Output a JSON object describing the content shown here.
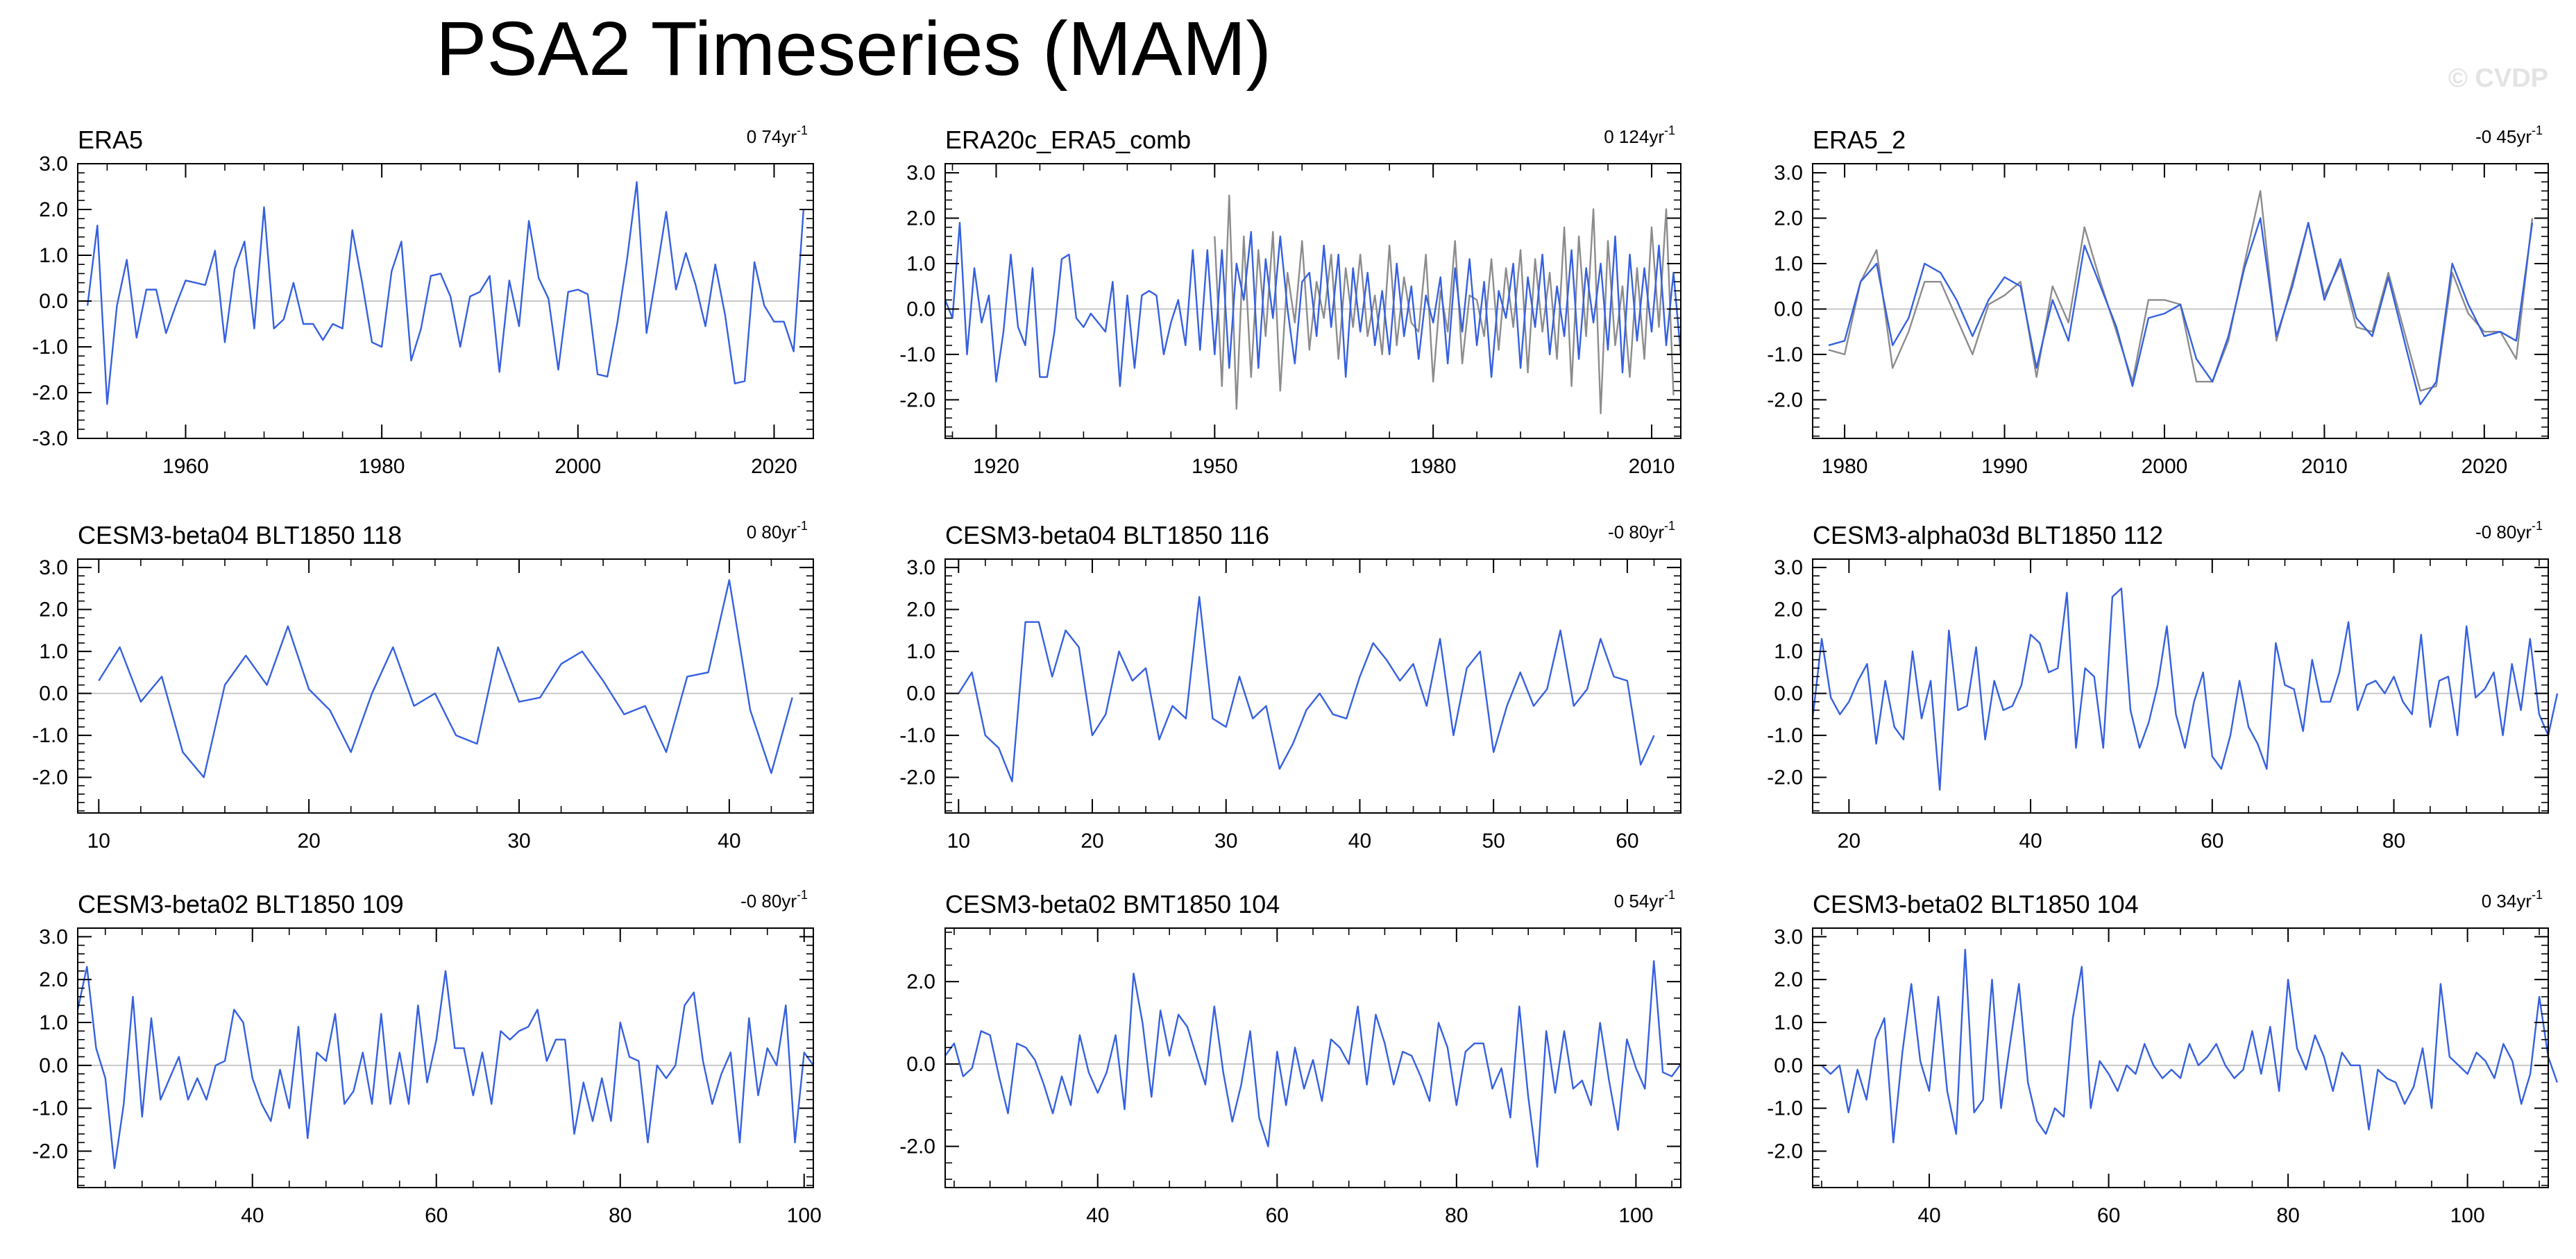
{
  "figure": {
    "title": "PSA2 Timeseries (MAM)",
    "watermark": "© CVDP",
    "colors": {
      "primary": "#3560e0",
      "secondary": "#8c8c8c",
      "zero_line": "#c8c8c8",
      "axes": "#000000"
    }
  },
  "chart_data": [
    {
      "type": "line",
      "title": "ERA5",
      "trend": "0 74yr",
      "trend_sup": "-1",
      "xlim": [
        1949,
        2024
      ],
      "ylim": [
        -3,
        3
      ],
      "xticks": [
        1960,
        1980,
        2000,
        2020
      ],
      "yticks": [
        -3,
        -2,
        -1,
        0,
        1,
        2,
        3
      ],
      "ytick_labels": [
        "-3.0",
        "-2.0",
        "-1.0",
        "0.0",
        "1.0",
        "2.0",
        "3.0"
      ],
      "series": [
        {
          "name": "ERA5",
          "x_start": 1950,
          "values": [
            -0.1,
            1.65,
            -2.25,
            -0.1,
            0.9,
            -0.8,
            0.25,
            0.25,
            -0.7,
            -0.1,
            0.45,
            0.4,
            0.35,
            1.1,
            -0.9,
            0.7,
            1.3,
            -0.6,
            2.05,
            -0.6,
            -0.4,
            0.4,
            -0.5,
            -0.5,
            -0.85,
            -0.5,
            -0.6,
            1.55,
            0.4,
            -0.9,
            -1.0,
            0.65,
            1.3,
            -1.3,
            -0.6,
            0.55,
            0.6,
            0.1,
            -1.0,
            0.1,
            0.2,
            0.55,
            -1.55,
            0.45,
            -0.55,
            1.75,
            0.5,
            0.05,
            -1.5,
            0.2,
            0.25,
            0.15,
            -1.6,
            -1.65,
            -0.5,
            0.9,
            2.6,
            -0.7,
            0.6,
            1.95,
            0.25,
            1.05,
            0.35,
            -0.55,
            0.8,
            -0.3,
            -1.8,
            -1.75,
            0.85,
            -0.1,
            -0.45,
            -0.45,
            -1.1,
            2.0
          ]
        }
      ]
    },
    {
      "type": "line",
      "title": "ERA20c_ERA5_comb",
      "trend": "0 124yr",
      "trend_sup": "-1",
      "xlim": [
        1913,
        2014
      ],
      "ylim": [
        -2.85,
        3.2
      ],
      "xticks": [
        1920,
        1950,
        1980,
        2010
      ],
      "yticks": [
        -2,
        -1,
        0,
        1,
        2,
        3
      ],
      "ytick_labels": [
        "-2.0",
        "-1.0",
        "0.0",
        "1.0",
        "2.0",
        "3.0"
      ],
      "series": [
        {
          "name": "ERA20c",
          "x_start": 1913,
          "values": [
            0.2,
            -0.2,
            1.9,
            -1.0,
            0.9,
            -0.3,
            0.3,
            -1.6,
            -0.5,
            1.2,
            -0.4,
            -0.8,
            0.9,
            -1.5,
            -1.5,
            -0.5,
            1.1,
            1.2,
            -0.2,
            -0.4,
            -0.1,
            -0.3,
            -0.5,
            0.6,
            -1.7,
            0.3,
            -1.3,
            0.3,
            0.4,
            0.3,
            -1.0,
            -0.3,
            0.2,
            -0.8,
            1.3,
            -0.9,
            1.3,
            -1.0,
            1.3,
            -1.3,
            1.0,
            0.2,
            1.7,
            -1.3,
            1.1,
            -0.2,
            1.6,
            0.0,
            -1.2,
            0.6,
            0.8,
            -0.6,
            1.4,
            -0.4,
            1.2,
            -1.5,
            0.9,
            -0.5,
            0.8,
            -0.8,
            0.4,
            -1.0,
            1.0,
            -0.6,
            0.5,
            -1.1,
            0.3,
            -0.3,
            0.7,
            -1.2,
            0.9,
            -0.5,
            1.1,
            -0.8,
            0.6,
            -1.5,
            0.4,
            -0.2,
            1.0,
            -1.3,
            0.7,
            -0.4,
            1.2,
            -1.0,
            0.5,
            -0.6,
            1.3,
            -1.1,
            0.9,
            -0.3,
            1.0,
            -0.9,
            1.6,
            -1.4,
            1.2,
            -0.7,
            0.9,
            -0.5,
            1.4,
            -0.8,
            0.8,
            -1.0
          ]
        },
        {
          "name": "ERA5",
          "x_start": 1950,
          "values": [
            1.6,
            -1.7,
            2.5,
            -2.2,
            1.6,
            -1.5,
            1.3,
            -0.6,
            1.7,
            -1.8,
            0.8,
            -0.3,
            1.5,
            -0.9,
            0.6,
            -0.2,
            1.2,
            -1.1,
            0.9,
            -0.4,
            1.2,
            -0.6,
            0.3,
            -1.0,
            1.4,
            -0.8,
            0.7,
            -0.3,
            -0.5,
            1.2,
            -1.6,
            0.4,
            -0.5,
            1.5,
            -1.2,
            0.3,
            0.2,
            -0.6,
            1.1,
            -0.9,
            0.9,
            -0.4,
            1.3,
            -1.4,
            1.1,
            -0.5,
            0.8,
            -1.1,
            1.8,
            -1.7,
            1.6,
            -0.6,
            2.2,
            -2.3,
            1.5,
            -0.8,
            0.5,
            -1.5,
            0.9,
            -1.1,
            1.8,
            -0.4,
            2.2,
            -1.9
          ]
        }
      ]
    },
    {
      "type": "line",
      "title": "ERA5_2",
      "trend": "-0 45yr",
      "trend_sup": "-1",
      "xlim": [
        1978,
        2024
      ],
      "ylim": [
        -2.85,
        3.2
      ],
      "xticks": [
        1980,
        1990,
        2000,
        2010,
        2020
      ],
      "yticks": [
        -2,
        -1,
        0,
        1,
        2,
        3
      ],
      "ytick_labels": [
        "-2.0",
        "-1.0",
        "0.0",
        "1.0",
        "2.0",
        "3.0"
      ],
      "series": [
        {
          "name": "ERA5_2",
          "x_start": 1979,
          "values": [
            -0.8,
            -0.7,
            0.6,
            1.0,
            -0.8,
            -0.2,
            1.0,
            0.8,
            0.2,
            -0.6,
            0.2,
            0.7,
            0.5,
            -1.3,
            0.2,
            -0.7,
            1.4,
            0.5,
            -0.4,
            -1.7,
            -0.2,
            -0.1,
            0.1,
            -1.1,
            -1.6,
            -0.6,
            0.9,
            2.0,
            -0.6,
            0.5,
            1.9,
            0.2,
            1.1,
            -0.2,
            -0.6,
            0.7,
            -0.7,
            -2.1,
            -1.6,
            1.0,
            0.1,
            -0.6,
            -0.5,
            -0.7,
            1.9
          ]
        },
        {
          "name": "ERA5",
          "x_start": 1979,
          "values": [
            -0.9,
            -1.0,
            0.6,
            1.3,
            -1.3,
            -0.5,
            0.6,
            0.6,
            -0.2,
            -1.0,
            0.1,
            0.3,
            0.6,
            -1.5,
            0.5,
            -0.3,
            1.8,
            0.6,
            -0.5,
            -1.6,
            0.2,
            0.2,
            0.1,
            -1.6,
            -1.6,
            -0.7,
            1.0,
            2.6,
            -0.7,
            0.6,
            1.9,
            0.3,
            1.0,
            -0.4,
            -0.5,
            0.8,
            -0.5,
            -1.8,
            -1.7,
            0.8,
            -0.1,
            -0.5,
            -0.5,
            -1.1,
            2.0
          ]
        }
      ]
    },
    {
      "type": "line",
      "title": "CESM3-beta04 BLT1850 118",
      "trend": "0 80yr",
      "trend_sup": "-1",
      "xlim": [
        9,
        44
      ],
      "ylim": [
        -2.85,
        3.2
      ],
      "xticks": [
        10,
        20,
        30,
        40
      ],
      "yticks": [
        -2,
        -1,
        0,
        1,
        2,
        3
      ],
      "ytick_labels": [
        "-2.0",
        "-1.0",
        "0.0",
        "1.0",
        "2.0",
        "3.0"
      ],
      "series": [
        {
          "name": "CESM3-beta04 BLT1850 118",
          "x_start": 10,
          "values": [
            0.3,
            1.1,
            -0.2,
            0.4,
            -1.4,
            -2.0,
            0.2,
            0.9,
            0.2,
            1.6,
            0.1,
            -0.4,
            -1.4,
            0.0,
            1.1,
            -0.3,
            0.0,
            -1.0,
            -1.2,
            1.1,
            -0.2,
            -0.1,
            0.7,
            1.0,
            0.3,
            -0.5,
            -0.3,
            -1.4,
            0.4,
            0.5,
            2.7,
            -0.4,
            -1.9,
            -0.1
          ]
        }
      ]
    },
    {
      "type": "line",
      "title": "CESM3-beta04 BLT1850 116",
      "trend": "-0 80yr",
      "trend_sup": "-1",
      "xlim": [
        9,
        64
      ],
      "ylim": [
        -2.85,
        3.2
      ],
      "xticks": [
        10,
        20,
        30,
        40,
        50,
        60
      ],
      "yticks": [
        -2,
        -1,
        0,
        1,
        2,
        3
      ],
      "ytick_labels": [
        "-2.0",
        "-1.0",
        "0.0",
        "1.0",
        "2.0",
        "3.0"
      ],
      "series": [
        {
          "name": "CESM3-beta04 BLT1850 116",
          "x_start": 10,
          "values": [
            0.0,
            0.5,
            -1.0,
            -1.3,
            -2.1,
            1.7,
            1.7,
            0.4,
            1.5,
            1.1,
            -1.0,
            -0.5,
            1.0,
            0.3,
            0.6,
            -1.1,
            -0.3,
            -0.6,
            2.3,
            -0.6,
            -0.8,
            0.4,
            -0.6,
            -0.3,
            -1.8,
            -1.2,
            -0.4,
            0.0,
            -0.5,
            -0.6,
            0.4,
            1.2,
            0.8,
            0.3,
            0.7,
            -0.3,
            1.3,
            -1.0,
            0.6,
            1.0,
            -1.4,
            -0.3,
            0.5,
            -0.3,
            0.1,
            1.5,
            -0.3,
            0.1,
            1.3,
            0.4,
            0.3,
            -1.7,
            -1.0
          ]
        }
      ]
    },
    {
      "type": "line",
      "title": "CESM3-alpha03d BLT1850 112",
      "trend": "-0 80yr",
      "trend_sup": "-1",
      "xlim": [
        16,
        97
      ],
      "ylim": [
        -2.85,
        3.2
      ],
      "xticks": [
        20,
        40,
        60,
        80
      ],
      "yticks": [
        -2,
        -1,
        0,
        1,
        2,
        3
      ],
      "ytick_labels": [
        "-2.0",
        "-1.0",
        "0.0",
        "1.0",
        "2.0",
        "3.0"
      ],
      "series": [
        {
          "name": "CESM3-alpha03d BLT1850 112",
          "x_start": 16,
          "values": [
            -0.6,
            1.3,
            -0.1,
            -0.5,
            -0.2,
            0.3,
            0.7,
            -1.2,
            0.3,
            -0.8,
            -1.1,
            1.0,
            -0.6,
            0.3,
            -2.3,
            1.5,
            -0.4,
            -0.3,
            1.1,
            -1.1,
            0.3,
            -0.4,
            -0.3,
            0.2,
            1.4,
            1.2,
            0.5,
            0.6,
            2.4,
            -1.3,
            0.6,
            0.4,
            -1.3,
            2.3,
            2.5,
            -0.4,
            -1.3,
            -0.7,
            0.2,
            1.6,
            -0.5,
            -1.3,
            -0.2,
            0.5,
            -1.5,
            -1.8,
            -1.0,
            0.3,
            -0.8,
            -1.2,
            -1.8,
            1.2,
            0.2,
            0.1,
            -0.9,
            0.8,
            -0.2,
            -0.2,
            0.5,
            1.7,
            -0.4,
            0.2,
            0.3,
            0.0,
            0.4,
            -0.2,
            -0.5,
            1.4,
            -0.8,
            0.3,
            0.4,
            -1.0,
            1.6,
            -0.1,
            0.1,
            0.5,
            -1.0,
            0.7,
            -0.4,
            1.3,
            -0.5,
            -1.0,
            0.0
          ]
        }
      ]
    },
    {
      "type": "line",
      "title": "CESM3-beta02 BLT1850 109",
      "trend": "-0 80yr",
      "trend_sup": "-1",
      "xlim": [
        21,
        101
      ],
      "ylim": [
        -2.85,
        3.2
      ],
      "xticks": [
        40,
        60,
        80,
        100
      ],
      "yticks": [
        -2,
        -1,
        0,
        1,
        2,
        3
      ],
      "ytick_labels": [
        "-2.0",
        "-1.0",
        "0.0",
        "1.0",
        "2.0",
        "3.0"
      ],
      "series": [
        {
          "name": "CESM3-beta02 BLT1850 109",
          "x_start": 21,
          "values": [
            1.3,
            2.3,
            0.4,
            -0.3,
            -2.4,
            -0.9,
            1.6,
            -1.2,
            1.1,
            -0.8,
            -0.3,
            0.2,
            -0.8,
            -0.3,
            -0.8,
            0.0,
            0.1,
            1.3,
            1.0,
            -0.3,
            -0.9,
            -1.3,
            -0.1,
            -1.0,
            0.9,
            -1.7,
            0.3,
            0.1,
            1.2,
            -0.9,
            -0.6,
            0.3,
            -0.9,
            1.2,
            -0.9,
            0.3,
            -0.9,
            1.4,
            -0.4,
            0.6,
            2.2,
            0.4,
            0.4,
            -0.7,
            0.3,
            -0.9,
            0.8,
            0.6,
            0.8,
            0.9,
            1.3,
            0.1,
            0.6,
            0.6,
            -1.6,
            -0.4,
            -1.3,
            -0.3,
            -1.3,
            1.0,
            0.2,
            0.1,
            -1.8,
            0.0,
            -0.3,
            0.0,
            1.4,
            1.7,
            0.1,
            -0.9,
            -0.2,
            0.3,
            -1.8,
            1.1,
            -0.7,
            0.4,
            0.0,
            1.4,
            -1.8,
            0.3,
            0.0
          ]
        }
      ]
    },
    {
      "type": "line",
      "title": "CESM3-beta02 BMT1850 104",
      "trend": "0 54yr",
      "trend_sup": "-1",
      "xlim": [
        23,
        105
      ],
      "ylim": [
        -3.0,
        3.3
      ],
      "xticks": [
        40,
        60,
        80,
        100
      ],
      "yticks": [
        -2,
        0,
        2
      ],
      "ytick_labels": [
        "-2.0",
        "0.0",
        "2.0"
      ],
      "series": [
        {
          "name": "CESM3-beta02 BMT1850 104",
          "x_start": 23,
          "values": [
            0.2,
            0.5,
            -0.3,
            -0.1,
            0.8,
            0.7,
            -0.3,
            -1.2,
            0.5,
            0.4,
            0.1,
            -0.5,
            -1.2,
            -0.3,
            -1.0,
            0.7,
            -0.2,
            -0.7,
            -0.2,
            0.7,
            -1.1,
            2.2,
            1.0,
            -0.8,
            1.3,
            0.2,
            1.2,
            0.9,
            0.2,
            -0.5,
            1.4,
            -0.2,
            -1.4,
            -0.5,
            0.8,
            -1.3,
            -2.0,
            0.3,
            -1.0,
            0.4,
            -0.6,
            0.1,
            -0.9,
            0.6,
            0.4,
            0.0,
            1.4,
            -0.5,
            1.2,
            0.5,
            -0.5,
            0.3,
            0.2,
            -0.3,
            -0.9,
            1.0,
            0.4,
            -1.0,
            0.3,
            0.5,
            0.5,
            -0.6,
            -0.1,
            -1.3,
            1.4,
            -0.8,
            -2.5,
            0.8,
            -0.7,
            0.8,
            -0.6,
            -0.4,
            -1.0,
            1.0,
            -0.4,
            -1.6,
            0.6,
            -0.1,
            -0.6,
            2.5,
            -0.2,
            -0.3,
            0.0
          ]
        }
      ]
    },
    {
      "type": "line",
      "title": "CESM3-beta02 BLT1850 104",
      "trend": "0 34yr",
      "trend_sup": "-1",
      "xlim": [
        27,
        109
      ],
      "ylim": [
        -2.85,
        3.2
      ],
      "xticks": [
        40,
        60,
        80,
        100
      ],
      "yticks": [
        -2,
        -1,
        0,
        1,
        2,
        3
      ],
      "ytick_labels": [
        "-2.0",
        "-1.0",
        "0.0",
        "1.0",
        "2.0",
        "3.0"
      ],
      "series": [
        {
          "name": "CESM3-beta02 BLT1850 104",
          "x_start": 28,
          "values": [
            0.0,
            -0.2,
            0.0,
            -1.1,
            -0.1,
            -0.8,
            0.6,
            1.1,
            -1.8,
            0.3,
            1.9,
            0.1,
            -0.6,
            1.6,
            -0.6,
            -1.6,
            2.7,
            -1.1,
            -0.8,
            2.0,
            -1.0,
            0.5,
            1.9,
            -0.4,
            -1.3,
            -1.6,
            -1.0,
            -1.2,
            1.1,
            2.3,
            -1.0,
            0.1,
            -0.2,
            -0.6,
            0.0,
            -0.2,
            0.5,
            0.0,
            -0.3,
            -0.1,
            -0.3,
            0.5,
            0.0,
            0.2,
            0.5,
            0.0,
            -0.3,
            -0.1,
            0.8,
            -0.2,
            0.9,
            -0.6,
            2.0,
            0.4,
            -0.1,
            0.7,
            0.2,
            -0.6,
            0.3,
            0.0,
            0.0,
            -1.5,
            -0.1,
            -0.3,
            -0.4,
            -0.9,
            -0.5,
            0.4,
            -1.0,
            1.9,
            0.2,
            0.0,
            -0.2,
            0.3,
            0.1,
            -0.3,
            0.5,
            0.1,
            -0.9,
            -0.2,
            1.6,
            0.2,
            -0.4
          ]
        }
      ]
    }
  ]
}
